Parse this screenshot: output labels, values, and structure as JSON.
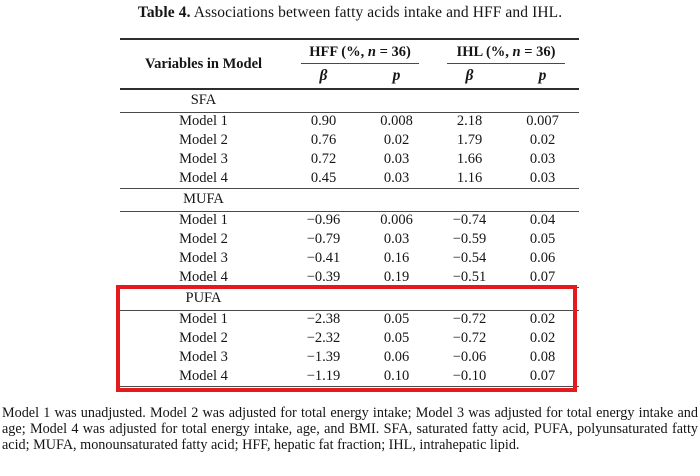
{
  "caption": {
    "label": "Table 4.",
    "text": " Associations between fatty acids intake and HFF and IHL."
  },
  "table": {
    "row_header": "Variables in Model",
    "groups": [
      {
        "prefix": "HFF (%, ",
        "n": "n",
        "suffix": " = 36)"
      },
      {
        "prefix": "IHL (%, ",
        "n": "n",
        "suffix": " = 36)"
      }
    ],
    "subheaders": [
      "β",
      "p",
      "β",
      "p"
    ],
    "sections": [
      {
        "label": "SFA",
        "rows": [
          {
            "label": "Model 1",
            "values": [
              "0.90",
              "0.008",
              "2.18",
              "0.007"
            ]
          },
          {
            "label": "Model 2",
            "values": [
              "0.76",
              "0.02",
              "1.79",
              "0.02"
            ]
          },
          {
            "label": "Model 3",
            "values": [
              "0.72",
              "0.03",
              "1.66",
              "0.03"
            ]
          },
          {
            "label": "Model 4",
            "values": [
              "0.45",
              "0.03",
              "1.16",
              "0.03"
            ]
          }
        ]
      },
      {
        "label": "MUFA",
        "rows": [
          {
            "label": "Model 1",
            "values": [
              "−0.96",
              "0.006",
              "−0.74",
              "0.04"
            ]
          },
          {
            "label": "Model 2",
            "values": [
              "−0.79",
              "0.03",
              "−0.59",
              "0.05"
            ]
          },
          {
            "label": "Model 3",
            "values": [
              "−0.41",
              "0.16",
              "−0.54",
              "0.06"
            ]
          },
          {
            "label": "Model 4",
            "values": [
              "−0.39",
              "0.19",
              "−0.51",
              "0.07"
            ]
          }
        ]
      },
      {
        "label": "PUFA",
        "rows": [
          {
            "label": "Model 1",
            "values": [
              "−2.38",
              "0.05",
              "−0.72",
              "0.02"
            ]
          },
          {
            "label": "Model 2",
            "values": [
              "−2.32",
              "0.05",
              "−0.72",
              "0.02"
            ]
          },
          {
            "label": "Model 3",
            "values": [
              "−1.39",
              "0.06",
              "−0.06",
              "0.08"
            ]
          },
          {
            "label": "Model 4",
            "values": [
              "−1.19",
              "0.10",
              "−0.10",
              "0.07"
            ]
          }
        ]
      }
    ]
  },
  "highlight": {
    "section": "PUFA",
    "color": "#e31b1e"
  },
  "footnote": "Model 1 was unadjusted. Model 2 was adjusted for total energy intake; Model 3 was adjusted for total energy intake and age; Model 4 was adjusted for total energy intake, age, and BMI. SFA, saturated fatty acid, PUFA, polyunsaturated fatty acid; MUFA, monounsaturated fatty acid; HFF, hepatic fat fraction; IHL, intrahepatic lipid."
}
